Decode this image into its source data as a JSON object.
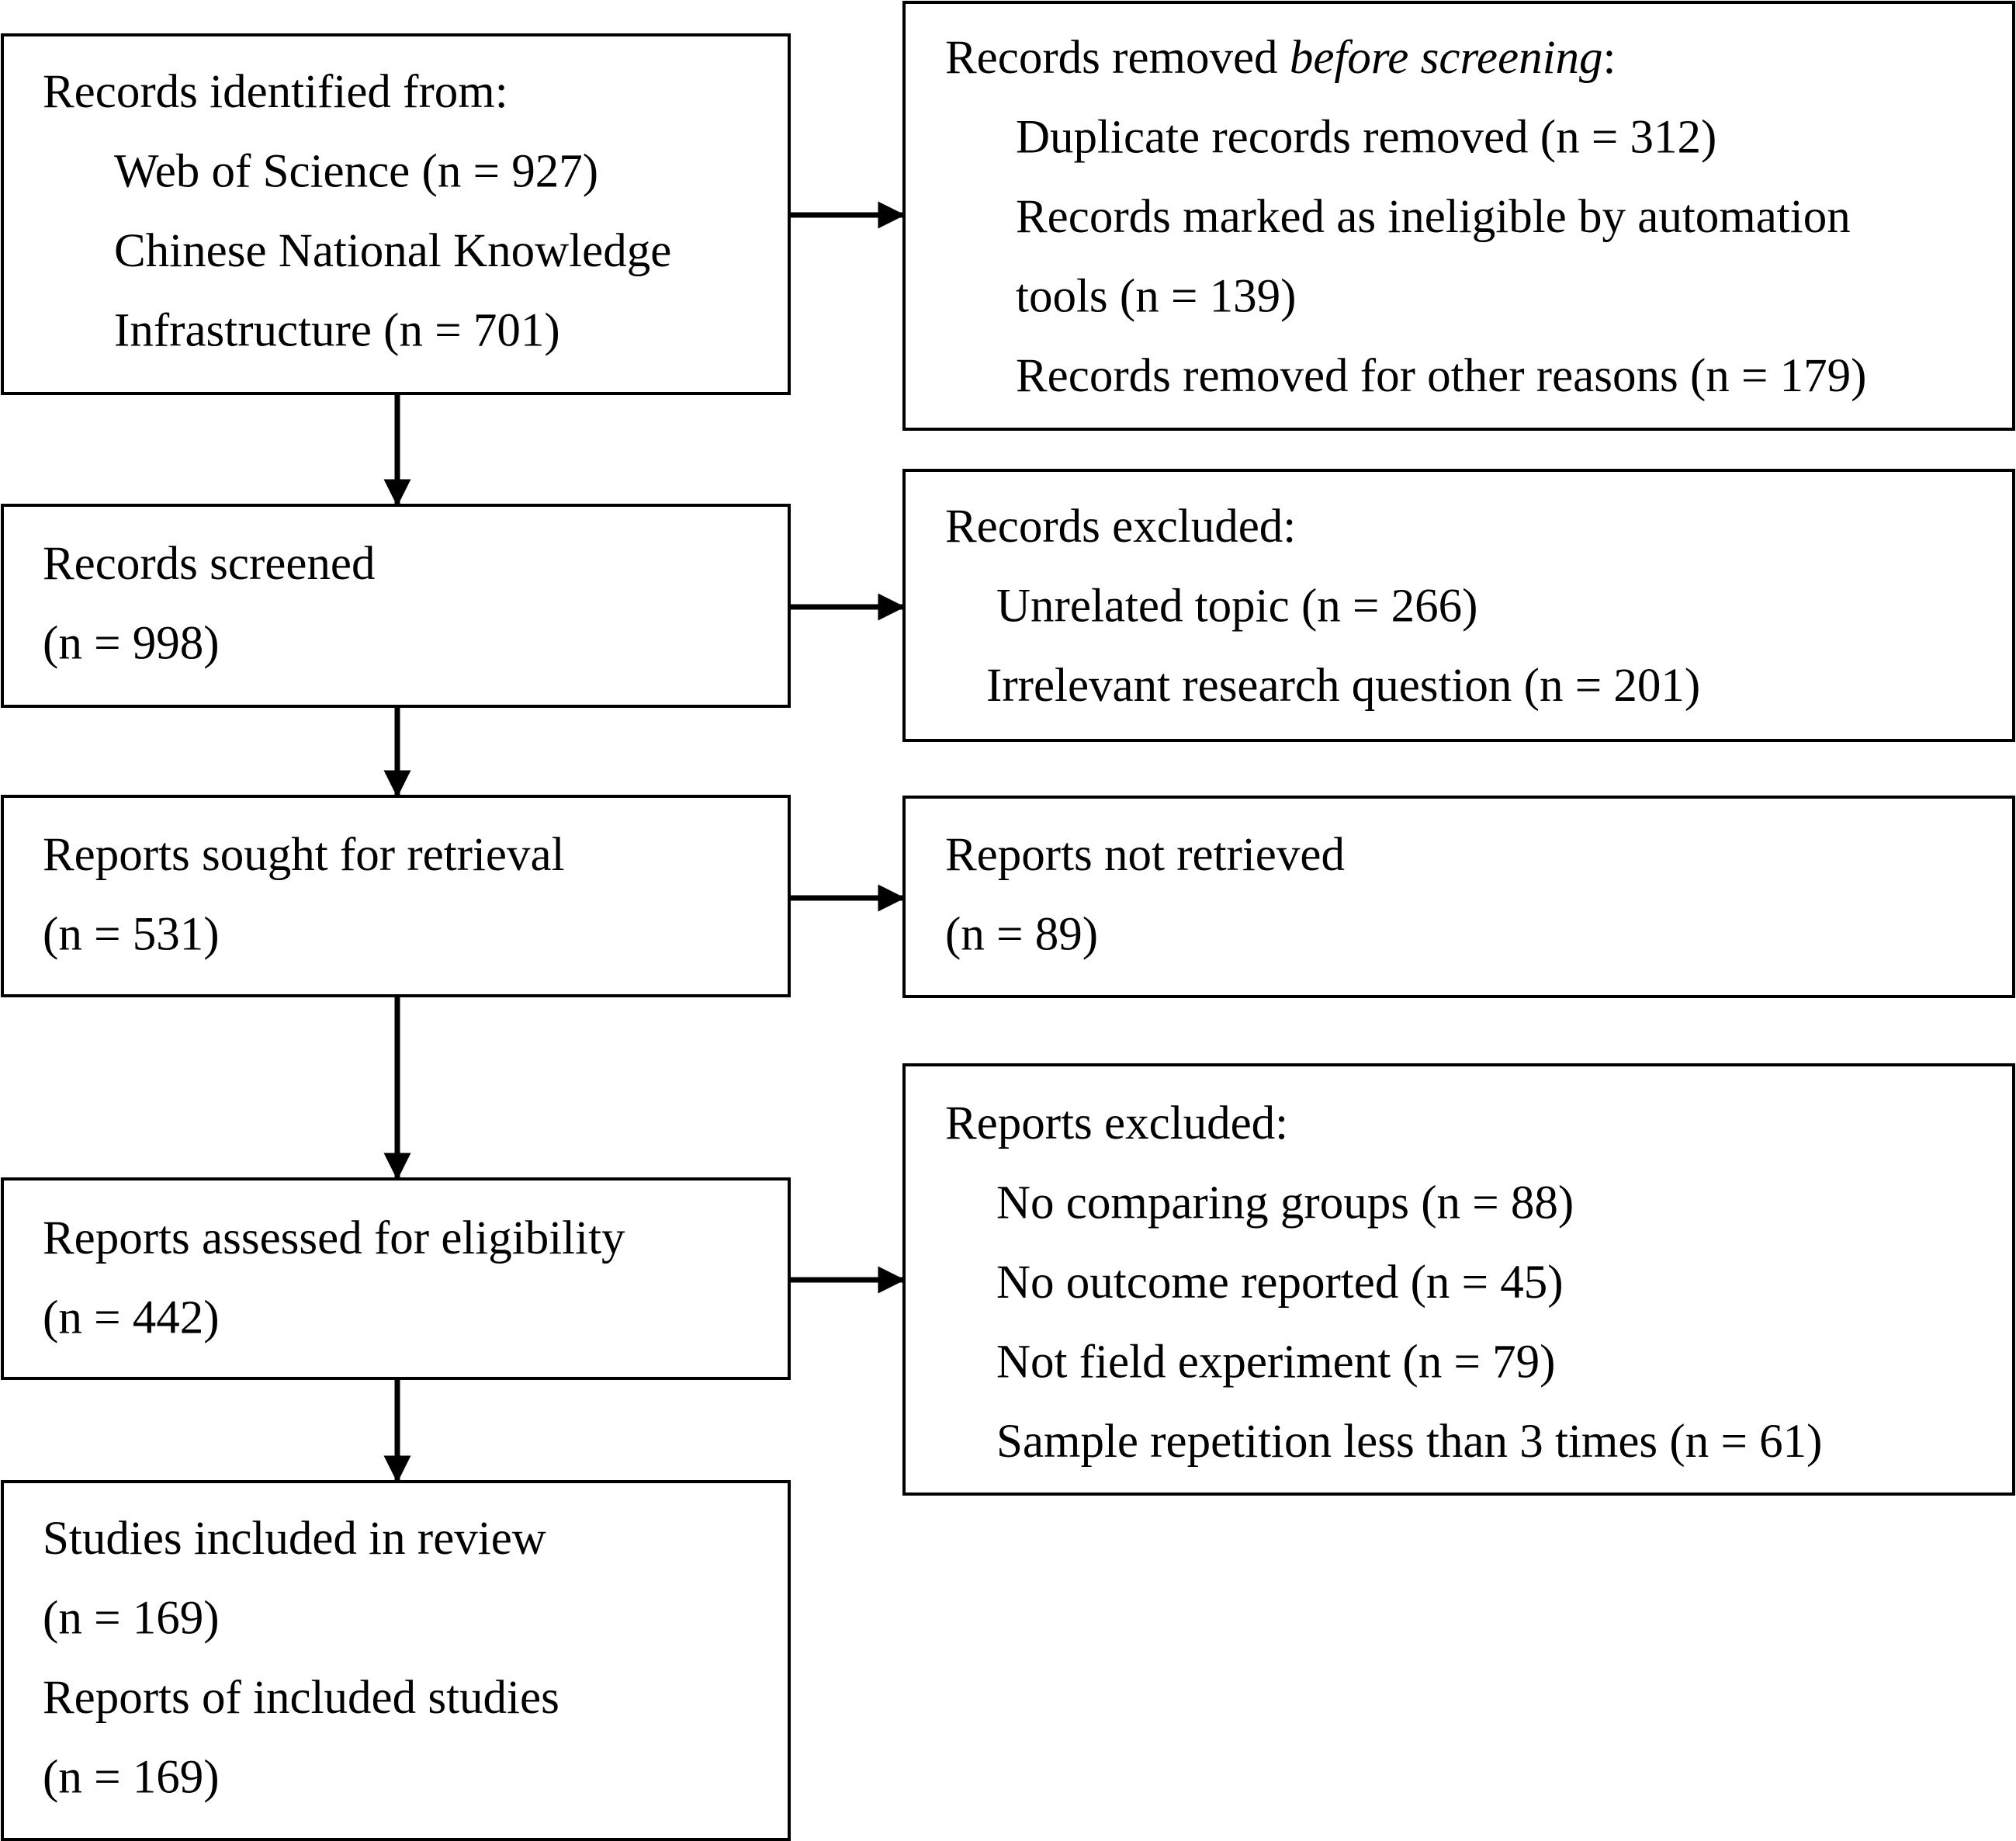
{
  "nodes": [
    {
      "lines": [
        "Records identified from:",
        "Web of Science (n = 927)",
        "Chinese National Knowledge",
        "Infrastructure (n = 701)"
      ]
    },
    {
      "lines": [
        [
          {
            "text": "Records removed "
          },
          {
            "text": "before screening",
            "italic": true
          },
          {
            "text": ":"
          }
        ],
        "Duplicate records removed (n = 312)",
        "Records marked as ineligible by automation",
        "tools (n = 139)",
        "Records removed for other reasons (n = 179)"
      ]
    },
    {
      "lines": [
        "Records screened",
        "(n = 998)"
      ]
    },
    {
      "lines": [
        "Records excluded:",
        "Unrelated topic (n = 266)",
        "Irrelevant research question (n = 201)"
      ]
    },
    {
      "lines": [
        "Reports sought for retrieval",
        "(n = 531)"
      ]
    },
    {
      "lines": [
        "Reports not retrieved",
        "(n = 89)"
      ]
    },
    {
      "lines": [
        "Reports assessed for eligibility",
        "(n = 442)"
      ]
    },
    {
      "lines": [
        "Reports excluded:",
        "No comparing groups (n = 88)",
        "No outcome reported (n = 45)",
        "Not field experiment (n = 79)",
        "Sample repetition less than 3 times (n = 61)"
      ]
    },
    {
      "lines": [
        "Studies included in review",
        "(n = 169)",
        "Reports of included studies",
        "(n = 169)"
      ]
    }
  ]
}
